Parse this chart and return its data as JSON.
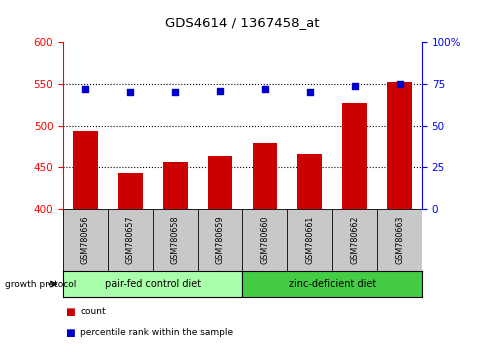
{
  "title": "GDS4614 / 1367458_at",
  "samples": [
    "GSM780656",
    "GSM780657",
    "GSM780658",
    "GSM780659",
    "GSM780660",
    "GSM780661",
    "GSM780662",
    "GSM780663"
  ],
  "counts": [
    494,
    443,
    456,
    464,
    479,
    466,
    527,
    553
  ],
  "percentiles": [
    72,
    70,
    70,
    71,
    72,
    70,
    74,
    75
  ],
  "ylim_left": [
    400,
    600
  ],
  "ylim_right": [
    0,
    100
  ],
  "yticks_left": [
    400,
    450,
    500,
    550,
    600
  ],
  "yticks_right": [
    0,
    25,
    50,
    75,
    100
  ],
  "bar_color": "#cc0000",
  "dot_color": "#0000cc",
  "group1_label": "pair-fed control diet",
  "group2_label": "zinc-deficient diet",
  "group1_color": "#aaffaa",
  "group2_color": "#44cc44",
  "group1_indices": [
    0,
    1,
    2,
    3
  ],
  "group2_indices": [
    4,
    5,
    6,
    7
  ],
  "label_bg_color": "#c8c8c8",
  "legend_count_label": "count",
  "legend_pct_label": "percentile rank within the sample",
  "growth_protocol_label": "growth protocol"
}
